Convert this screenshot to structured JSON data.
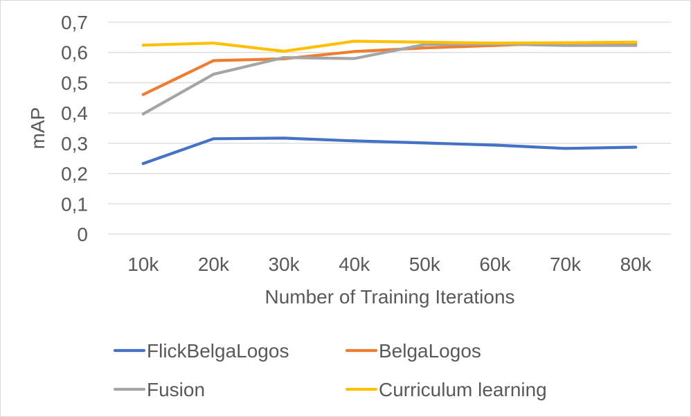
{
  "chart_data": {
    "type": "line",
    "title": "",
    "xlabel": "Number of Training Iterations",
    "ylabel": "mAP",
    "categories": [
      "10k",
      "20k",
      "30k",
      "40k",
      "50k",
      "60k",
      "70k",
      "80k"
    ],
    "ylim": [
      0,
      0.7
    ],
    "yticks": [
      0,
      0.1,
      0.2,
      0.3,
      0.4,
      0.5,
      0.6,
      0.7
    ],
    "ytick_labels": [
      "0",
      "0,1",
      "0,2",
      "0,3",
      "0,4",
      "0,5",
      "0,6",
      "0,7"
    ],
    "grid": true,
    "legend_position": "bottom",
    "series": [
      {
        "name": "FlickBelgaLogos",
        "color": "#4472C4",
        "values": [
          0.233,
          0.315,
          0.317,
          0.308,
          0.301,
          0.294,
          0.283,
          0.287
        ]
      },
      {
        "name": "BelgaLogos",
        "color": "#ED7D31",
        "values": [
          0.461,
          0.573,
          0.579,
          0.603,
          0.615,
          0.623,
          0.632,
          0.627
        ]
      },
      {
        "name": "Fusion",
        "color": "#A5A5A5",
        "values": [
          0.397,
          0.528,
          0.583,
          0.58,
          0.626,
          0.628,
          0.623,
          0.623
        ]
      },
      {
        "name": "Curriculum learning",
        "color": "#FFC000",
        "values": [
          0.624,
          0.631,
          0.604,
          0.637,
          0.634,
          0.631,
          0.632,
          0.634
        ]
      }
    ]
  }
}
